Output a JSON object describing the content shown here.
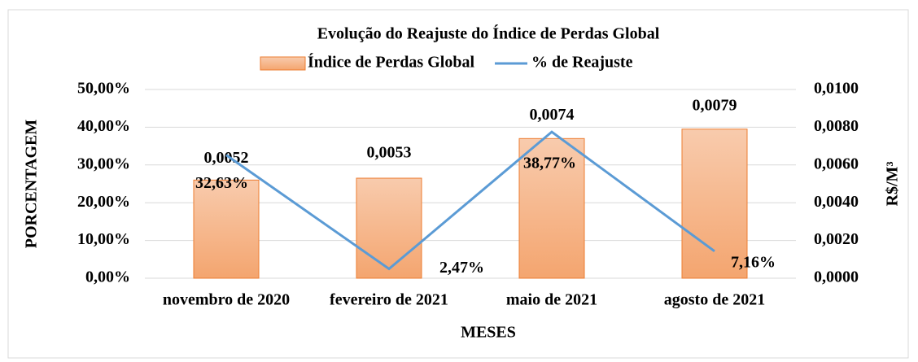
{
  "chart_data": {
    "type": "bar-line",
    "title": "Evolução do Reajuste do Índice de Perdas Global",
    "categories": [
      "novembro de 2020",
      "fevereiro de 2021",
      "maio de 2021",
      "agosto de 2021"
    ],
    "xlabel": "MESES",
    "ylabel": "PORCENTAGEM",
    "y2label": "R$/M³",
    "series": [
      {
        "name": "Índice de Perdas Global",
        "type": "bar",
        "axis": "y2",
        "color": "#f4b183",
        "values": [
          0.0052,
          0.0053,
          0.0074,
          0.0079
        ],
        "value_labels": [
          "0,0052",
          "0,0053",
          "0,0074",
          "0,0079"
        ]
      },
      {
        "name": "% de Reajuste",
        "type": "line",
        "axis": "y",
        "color": "#5b9bd5",
        "values": [
          32.63,
          2.47,
          38.77,
          7.16
        ],
        "value_labels": [
          "32,63%",
          "2,47%",
          "38,77%",
          "7,16%"
        ]
      }
    ],
    "ylim": [
      0,
      50
    ],
    "yticks": [
      {
        "value": 0,
        "label": "0,00%"
      },
      {
        "value": 10,
        "label": "10,00%"
      },
      {
        "value": 20,
        "label": "20,00%"
      },
      {
        "value": 30,
        "label": "30,00%"
      },
      {
        "value": 40,
        "label": "40,00%"
      },
      {
        "value": 50,
        "label": "50,00%"
      }
    ],
    "y2lim": [
      0,
      0.01
    ],
    "y2ticks": [
      {
        "value": 0,
        "label": "0,0000"
      },
      {
        "value": 0.002,
        "label": "0,0020"
      },
      {
        "value": 0.004,
        "label": "0,0040"
      },
      {
        "value": 0.006,
        "label": "0,0060"
      },
      {
        "value": 0.008,
        "label": "0,0080"
      },
      {
        "value": 0.01,
        "label": "0,0100"
      }
    ],
    "grid": true,
    "legend": "top"
  }
}
